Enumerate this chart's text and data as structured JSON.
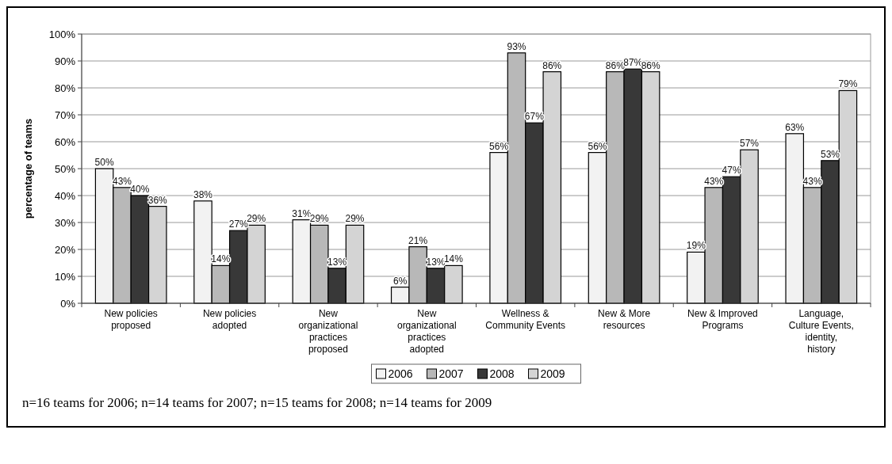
{
  "chart_data": {
    "type": "bar",
    "ylabel": "percentage of teams",
    "categories": [
      "New policies proposed",
      "New policies adopted",
      "New organizational practices proposed",
      "New organizational practices adopted",
      "Wellness & Community Events",
      "New & More resources",
      "New & Improved Programs",
      "Language, Culture Events, identity, history"
    ],
    "series": [
      {
        "name": "2006",
        "color": "#f2f2f2",
        "values": [
          50,
          38,
          31,
          6,
          56,
          56,
          19,
          63
        ],
        "value_labels": [
          "50%",
          "38%",
          "31%",
          "6%",
          "56%",
          "56%",
          "19%",
          "63%"
        ]
      },
      {
        "name": "2007",
        "color": "#b8b8b8",
        "values": [
          43,
          14,
          29,
          21,
          93,
          86,
          43,
          43
        ],
        "value_labels": [
          "43%",
          "14%",
          "29%",
          "21%",
          "93%",
          "86%",
          "43%",
          "43%"
        ]
      },
      {
        "name": "2008",
        "color": "#383838",
        "values": [
          40,
          27,
          13,
          13,
          67,
          87,
          47,
          53
        ],
        "value_labels": [
          "40%",
          "27%",
          "13%",
          "13%",
          "67%",
          "87%",
          "47%",
          "53%"
        ]
      },
      {
        "name": "2009",
        "color": "#d4d4d4",
        "values": [
          36,
          29,
          29,
          14,
          86,
          86,
          57,
          79
        ],
        "value_labels": [
          "36%",
          "29%",
          "29%",
          "14%",
          "86%",
          "86%",
          "57%",
          "79%"
        ]
      }
    ],
    "ylim": [
      0,
      100
    ],
    "yticks": [
      {
        "value": 0,
        "label": "0%"
      },
      {
        "value": 10,
        "label": "10%"
      },
      {
        "value": 20,
        "label": "20%"
      },
      {
        "value": 30,
        "label": "30%"
      },
      {
        "value": 40,
        "label": "40%"
      },
      {
        "value": 50,
        "label": "50%"
      },
      {
        "value": 60,
        "label": "60%"
      },
      {
        "value": 70,
        "label": "70%"
      },
      {
        "value": 80,
        "label": "80%"
      },
      {
        "value": 90,
        "label": "90%"
      },
      {
        "value": 100,
        "label": "100%"
      }
    ],
    "grid": "y",
    "legend": "bottom",
    "annotations": [
      "n=16 teams for 2006; n=14 teams for 2007; n=15 teams for 2008; n=14 teams for 2009"
    ]
  }
}
